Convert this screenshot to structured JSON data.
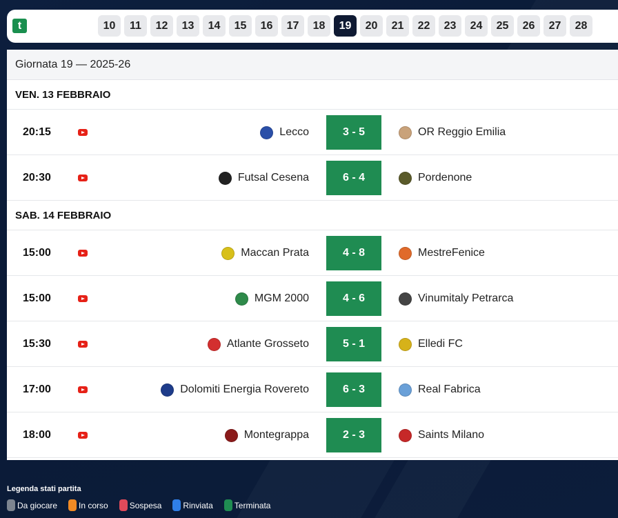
{
  "app": {
    "logo_letter": "t"
  },
  "rounds": [
    "10",
    "11",
    "12",
    "13",
    "14",
    "15",
    "16",
    "17",
    "18",
    "19",
    "20",
    "21",
    "22",
    "23",
    "24",
    "25",
    "26",
    "27",
    "28"
  ],
  "active_round": "19",
  "giornata_title": "Giornata 19 — 2025-26",
  "days": [
    {
      "label": "VEN. 13 FEBBRAIO",
      "matches": [
        {
          "time": "20:15",
          "home": "Lecco",
          "score": "3 - 5",
          "away": "OR Reggio Emilia",
          "home_color": "#2a4fa8",
          "away_color": "#c9a27a"
        },
        {
          "time": "20:30",
          "home": "Futsal Cesena",
          "score": "6 - 4",
          "away": "Pordenone",
          "home_color": "#222222",
          "away_color": "#5a5a2a"
        }
      ]
    },
    {
      "label": "SAB. 14 FEBBRAIO",
      "matches": [
        {
          "time": "15:00",
          "home": "Maccan Prata",
          "score": "4 - 8",
          "away": "MestreFenice",
          "home_color": "#d8c01a",
          "away_color": "#e06a2a"
        },
        {
          "time": "15:00",
          "home": "MGM 2000",
          "score": "4 - 6",
          "away": "Vinumitaly Petrarca",
          "home_color": "#2e8a4a",
          "away_color": "#444444"
        },
        {
          "time": "15:30",
          "home": "Atlante Grosseto",
          "score": "5 - 1",
          "away": "Elledi FC",
          "home_color": "#d32f2f",
          "away_color": "#d6b21a"
        },
        {
          "time": "17:00",
          "home": "Dolomiti Energia Rovereto",
          "score": "6 - 3",
          "away": "Real Fabrica",
          "home_color": "#1e3c8a",
          "away_color": "#6aa0d8"
        },
        {
          "time": "18:00",
          "home": "Montegrappa",
          "score": "2 - 3",
          "away": "Saints Milano",
          "home_color": "#8a1a1a",
          "away_color": "#c62828"
        }
      ]
    }
  ],
  "legend": {
    "title": "Legenda stati partita",
    "items": [
      {
        "label": "Da giocare",
        "color": "#7d8590"
      },
      {
        "label": "In corso",
        "color": "#f08a24"
      },
      {
        "label": "Sospesa",
        "color": "#e04a5a"
      },
      {
        "label": "Rinviata",
        "color": "#2f7fe8"
      },
      {
        "label": "Terminata",
        "color": "#1f8c52"
      }
    ]
  }
}
